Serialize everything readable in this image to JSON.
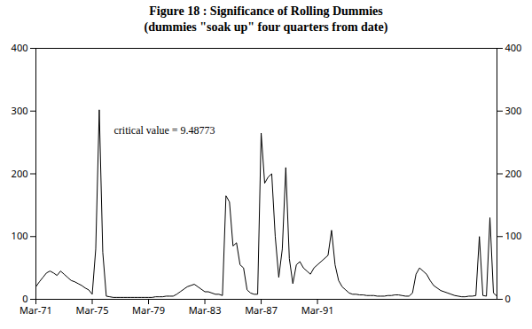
{
  "chart_data": {
    "type": "line",
    "title": "Figure 18 : Significance of Rolling Dummies",
    "subtitle": "(dummies \"soak up\" four quarters from date)",
    "annotations": [
      "critical value = 9.48773"
    ],
    "color": "#000000",
    "ylim": [
      0,
      400
    ],
    "yticks": [
      0,
      100,
      200,
      300,
      400
    ],
    "categories": [
      "Mar-71",
      null,
      null,
      null,
      null,
      null,
      null,
      null,
      null,
      null,
      null,
      null,
      null,
      null,
      null,
      null,
      "Mar-75",
      null,
      null,
      null,
      null,
      null,
      null,
      null,
      null,
      null,
      null,
      null,
      null,
      null,
      null,
      null,
      "Mar-79",
      null,
      null,
      null,
      null,
      null,
      null,
      null,
      null,
      null,
      null,
      null,
      null,
      null,
      null,
      null,
      "Mar-83",
      null,
      null,
      null,
      null,
      null,
      null,
      null,
      null,
      null,
      null,
      null,
      null,
      null,
      null,
      null,
      "Mar-87",
      null,
      null,
      null,
      null,
      null,
      null,
      null,
      null,
      null,
      null,
      null,
      null,
      null,
      null,
      null,
      "Mar-91",
      null,
      null,
      null,
      null,
      null,
      null,
      null,
      null,
      null,
      null,
      null,
      null,
      null,
      null,
      null,
      null,
      null,
      null,
      null,
      null,
      null,
      null,
      null,
      null,
      null,
      null,
      null,
      null,
      null,
      null,
      null,
      null,
      null,
      null,
      null,
      null,
      null,
      null,
      null,
      null,
      null,
      null,
      null,
      null,
      null,
      null,
      null,
      null,
      null,
      null,
      null
    ],
    "values": [
      20,
      28,
      35,
      42,
      45,
      42,
      38,
      45,
      40,
      35,
      30,
      28,
      25,
      22,
      18,
      15,
      8,
      80,
      302,
      75,
      5,
      4,
      3,
      3,
      3,
      3,
      3,
      3,
      3,
      3,
      3,
      3,
      3,
      3,
      4,
      4,
      4,
      5,
      5,
      5,
      8,
      12,
      16,
      20,
      22,
      24,
      20,
      16,
      12,
      12,
      10,
      8,
      8,
      6,
      165,
      155,
      85,
      90,
      55,
      50,
      15,
      10,
      8,
      8,
      265,
      185,
      195,
      200,
      100,
      35,
      80,
      210,
      65,
      25,
      55,
      60,
      50,
      45,
      40,
      50,
      55,
      60,
      65,
      70,
      110,
      55,
      30,
      20,
      15,
      10,
      8,
      8,
      7,
      7,
      6,
      6,
      6,
      5,
      5,
      5,
      6,
      6,
      7,
      7,
      6,
      5,
      5,
      10,
      40,
      50,
      45,
      40,
      30,
      22,
      18,
      14,
      12,
      10,
      8,
      6,
      5,
      4,
      4,
      5,
      5,
      6,
      100,
      6,
      5,
      130,
      10,
      5
    ]
  }
}
